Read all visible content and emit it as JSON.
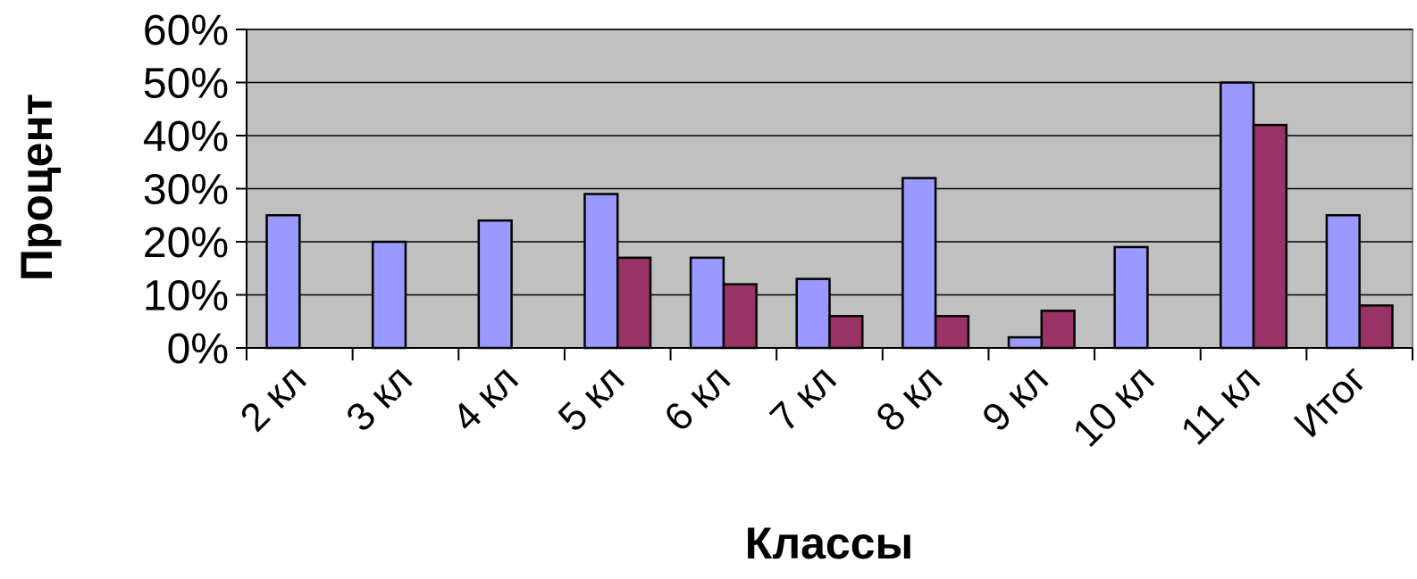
{
  "chart_data": {
    "type": "bar",
    "categories": [
      "2 кл",
      "3 кл",
      "4 кл",
      "5 кл",
      "6 кл",
      "7 кл",
      "8 кл",
      "9 кл",
      "10 кл",
      "11 кл",
      "Итог"
    ],
    "series": [
      {
        "values": [
          25,
          20,
          24,
          29,
          17,
          13,
          32,
          2,
          19,
          50,
          25
        ],
        "color": "#9999ff"
      },
      {
        "values": [
          0,
          0,
          0,
          17,
          12,
          6,
          6,
          7,
          0,
          42,
          8
        ],
        "color": "#993366"
      }
    ],
    "title": "",
    "xlabel": "Классы",
    "ylabel": "Процент",
    "ylim": [
      0,
      60
    ],
    "yticks": [
      0,
      10,
      20,
      30,
      40,
      50,
      60
    ],
    "ytick_labels": [
      "0%",
      "10%",
      "20%",
      "30%",
      "40%",
      "50%",
      "60%"
    ],
    "plot_background": "#c0c0c0",
    "grid": true,
    "legend": false
  }
}
